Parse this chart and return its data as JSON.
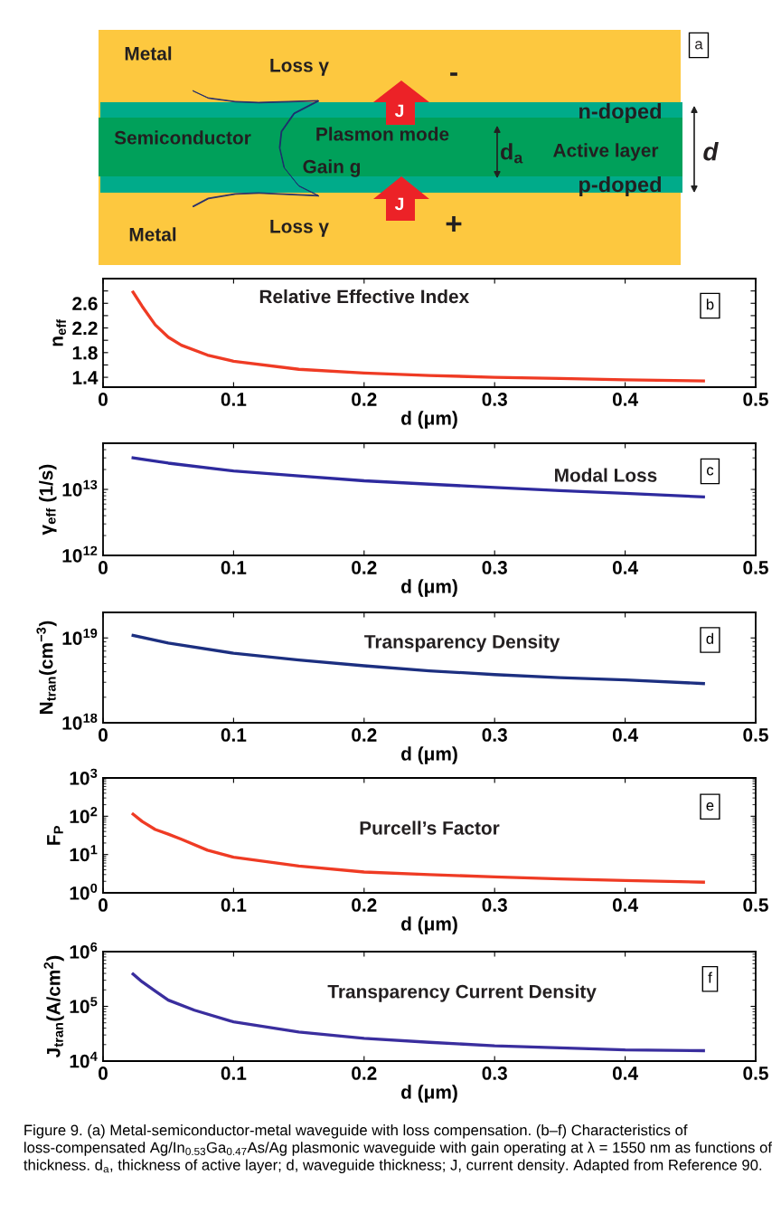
{
  "chart_data": [
    {
      "type": "other",
      "annotations": [
        "a",
        "Metal",
        "Loss γ",
        "-",
        "J",
        "n-doped",
        "Semiconductor",
        "Plasmon mode",
        "d$_{a}$",
        "Active layer",
        "d",
        "Gain g",
        "J",
        "p-doped",
        "Metal",
        "Loss γ",
        "+"
      ]
    },
    {
      "type": "line",
      "title": "Relative Effective Index",
      "xlabel": "d (μm)",
      "ylabel": "n$_{eff}$",
      "color": "#ef3b24",
      "annotations": [
        "b"
      ],
      "xlim": [
        0,
        0.5
      ],
      "xticks": [
        0,
        0.1,
        0.2,
        0.3,
        0.4,
        0.5
      ],
      "ylim": [
        1.24,
        3.0
      ],
      "yticks": [
        1.4,
        {
          "value": 1.6,
          "label": null
        },
        1.8,
        {
          "value": 2.0,
          "label": null
        },
        2.2,
        {
          "value": 2.4,
          "label": null
        },
        2.6,
        {
          "value": 2.8,
          "label": null
        }
      ],
      "x": [
        0.023,
        0.03,
        0.04,
        0.05,
        0.06,
        0.08,
        0.1,
        0.15,
        0.2,
        0.25,
        0.3,
        0.35,
        0.4,
        0.46
      ],
      "values": [
        2.78,
        2.55,
        2.25,
        2.05,
        1.92,
        1.76,
        1.66,
        1.53,
        1.47,
        1.43,
        1.4,
        1.38,
        1.36,
        1.34
      ]
    },
    {
      "type": "line",
      "title": "Modal Loss",
      "xlabel": "d (μm)",
      "ylabel": "γ$_{eff}$ (1/s)",
      "color": "#2e2a9e",
      "annotations": [
        "c"
      ],
      "log": "y",
      "xlim": [
        0,
        0.5
      ],
      "xticks": [
        0,
        0.1,
        0.2,
        0.3,
        0.4,
        0.5
      ],
      "ylim": [
        1000000000000.0,
        50000000000000.0
      ],
      "yticks": [
        {
          "value": 1000000000000.0,
          "label": "10$^{12}$"
        },
        {
          "value": 10000000000000.0,
          "label": "10$^{13}$"
        }
      ],
      "x": [
        0.023,
        0.05,
        0.1,
        0.15,
        0.2,
        0.25,
        0.3,
        0.35,
        0.4,
        0.46
      ],
      "values": [
        30000000000000.0,
        25000000000000.0,
        19000000000000.0,
        16000000000000.0,
        13500000000000.0,
        12000000000000.0,
        10700000000000.0,
        9600000000000.0,
        8700000000000.0,
        7700000000000.0
      ]
    },
    {
      "type": "line",
      "title": "Transparency Density",
      "xlabel": "d (μm)",
      "ylabel": "N$_{tran}$(cm$^{−3}$)",
      "color": "#1c2f80",
      "annotations": [
        "d"
      ],
      "log": "y",
      "xlim": [
        0,
        0.5
      ],
      "xticks": [
        0,
        0.1,
        0.2,
        0.3,
        0.4,
        0.5
      ],
      "ylim": [
        1e+18,
        2e+19
      ],
      "yticks": [
        {
          "value": 1e+18,
          "label": "10$^{18}$"
        },
        {
          "value": 1e+19,
          "label": "10$^{19}$"
        }
      ],
      "x": [
        0.023,
        0.05,
        0.1,
        0.15,
        0.2,
        0.25,
        0.3,
        0.35,
        0.4,
        0.46
      ],
      "values": [
        1.07e+19,
        8.7e+18,
        6.6e+18,
        5.5e+18,
        4.7e+18,
        4.1e+18,
        3.7e+18,
        3.4e+18,
        3.2e+18,
        2.9e+18
      ]
    },
    {
      "type": "line",
      "title": "Purcell’s Factor",
      "xlabel": "d (μm)",
      "ylabel": "F$_{P}$",
      "color": "#ef3b24",
      "annotations": [
        "e"
      ],
      "log": "y",
      "xlim": [
        0,
        0.5
      ],
      "xticks": [
        0,
        0.1,
        0.2,
        0.3,
        0.4,
        0.5
      ],
      "ylim": [
        1,
        1000
      ],
      "yticks": [
        {
          "value": 1,
          "label": "10$^{0}$"
        },
        {
          "value": 10,
          "label": "10$^{1}$"
        },
        {
          "value": 100,
          "label": "10$^{2}$"
        },
        {
          "value": 1000,
          "label": "10$^{3}$"
        }
      ],
      "x": [
        0.023,
        0.03,
        0.04,
        0.05,
        0.06,
        0.08,
        0.1,
        0.15,
        0.2,
        0.25,
        0.3,
        0.35,
        0.4,
        0.46
      ],
      "values": [
        113,
        73,
        45,
        34,
        25,
        13,
        8.5,
        5,
        3.5,
        3,
        2.6,
        2.3,
        2.1,
        1.9
      ]
    },
    {
      "type": "line",
      "title": "Transparency Current Density",
      "xlabel": "d (μm)",
      "ylabel": "J$_{tran}$(A/cm$^{2}$)",
      "color": "#3a2e9e",
      "annotations": [
        "f",
        "Figure 9. (a) Metal-semiconductor-metal waveguide with loss compensation. (b–f) Characteristics of loss-compensated Ag/In$_{0.53}$Ga$_{0.47}$As/Ag plasmonic waveguide with gain operating at λ = 1550 nm as functions of thickness. d$_{a}$, thickness of active layer; d, waveguide thickness; J, current density. Adapted from Reference 90."
      ],
      "log": "y",
      "xlim": [
        0,
        0.5
      ],
      "xticks": [
        0,
        0.1,
        0.2,
        0.3,
        0.4,
        0.5
      ],
      "ylim": [
        10000.0,
        1000000.0
      ],
      "yticks": [
        {
          "value": 10000.0,
          "label": "10$^{4}$"
        },
        {
          "value": 100000.0,
          "label": "10$^{5}$"
        },
        {
          "value": 1000000.0,
          "label": "10$^{6}$"
        }
      ],
      "x": [
        0.023,
        0.03,
        0.04,
        0.05,
        0.07,
        0.1,
        0.15,
        0.2,
        0.25,
        0.3,
        0.35,
        0.4,
        0.46
      ],
      "values": [
        390000.0,
        280000.0,
        190000.0,
        130000.0,
        85000.0,
        52000.0,
        34000.0,
        26000.0,
        22000.0,
        19000.0,
        17500.0,
        16000.0,
        15500.0
      ]
    }
  ]
}
